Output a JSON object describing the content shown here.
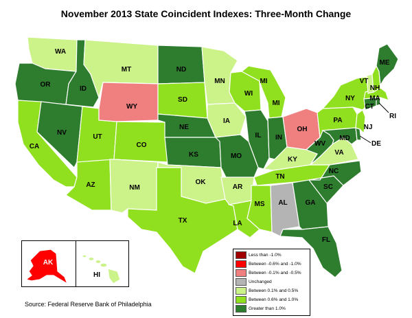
{
  "title": "November 2013 State Coincident Indexes: Three-Month Change",
  "source": "Source: Federal Reserve Bank of Philadelphia",
  "colors": {
    "lt_neg1": "#a00000",
    "neg06_neg1": "#ff0000",
    "neg01_neg05": "#f08080",
    "unchanged": "#b4b4b4",
    "pos01_05": "#ccf28a",
    "pos06_1": "#90e020",
    "gt_1": "#2e7d2e"
  },
  "legend": [
    {
      "key": "lt_neg1",
      "label": "Less than -1.0%"
    },
    {
      "key": "neg06_neg1",
      "label": "Between -0.6% and -1.0%"
    },
    {
      "key": "neg01_neg05",
      "label": "Between -0.1% and -0.5%"
    },
    {
      "key": "unchanged",
      "label": "Unchanged"
    },
    {
      "key": "pos01_05",
      "label": "Between 0.1% and 0.5%"
    },
    {
      "key": "pos06_1",
      "label": "Between 0.6% and 1.0%"
    },
    {
      "key": "gt_1",
      "label": "Greater than 1.0%"
    }
  ],
  "states": {
    "WA": {
      "label": "WA",
      "category": "pos01_05"
    },
    "OR": {
      "label": "OR",
      "category": "gt_1"
    },
    "CA": {
      "label": "CA",
      "category": "pos06_1"
    },
    "ID": {
      "label": "ID",
      "category": "gt_1"
    },
    "NV": {
      "label": "NV",
      "category": "gt_1"
    },
    "AZ": {
      "label": "AZ",
      "category": "pos06_1"
    },
    "UT": {
      "label": "UT",
      "category": "pos06_1"
    },
    "MT": {
      "label": "MT",
      "category": "pos01_05"
    },
    "WY": {
      "label": "WY",
      "category": "neg01_neg05"
    },
    "CO": {
      "label": "CO",
      "category": "pos06_1"
    },
    "NM": {
      "label": "NM",
      "category": "pos01_05"
    },
    "ND": {
      "label": "ND",
      "category": "gt_1"
    },
    "SD": {
      "label": "SD",
      "category": "pos06_1"
    },
    "NE": {
      "label": "NE",
      "category": "gt_1"
    },
    "KS": {
      "label": "KS",
      "category": "gt_1"
    },
    "OK": {
      "label": "OK",
      "category": "pos01_05"
    },
    "TX": {
      "label": "TX",
      "category": "pos06_1"
    },
    "MN": {
      "label": "MN",
      "category": "pos01_05"
    },
    "IA": {
      "label": "IA",
      "category": "pos01_05"
    },
    "MO": {
      "label": "MO",
      "category": "gt_1"
    },
    "AR": {
      "label": "AR",
      "category": "pos01_05"
    },
    "LA": {
      "label": "LA",
      "category": "pos06_1"
    },
    "WI": {
      "label": "WI",
      "category": "pos06_1"
    },
    "IL": {
      "label": "IL",
      "category": "gt_1"
    },
    "MI": {
      "label": "MI",
      "category": "pos06_1"
    },
    "IN": {
      "label": "IN",
      "category": "gt_1"
    },
    "OH": {
      "label": "OH",
      "category": "neg01_neg05"
    },
    "KY": {
      "label": "KY",
      "category": "pos01_05"
    },
    "TN": {
      "label": "TN",
      "category": "pos06_1"
    },
    "MS": {
      "label": "MS",
      "category": "pos06_1"
    },
    "AL": {
      "label": "AL",
      "category": "unchanged"
    },
    "GA": {
      "label": "GA",
      "category": "gt_1"
    },
    "FL": {
      "label": "FL",
      "category": "gt_1"
    },
    "SC": {
      "label": "SC",
      "category": "gt_1"
    },
    "NC": {
      "label": "NC",
      "category": "gt_1"
    },
    "VA": {
      "label": "VA",
      "category": "pos01_05"
    },
    "WV": {
      "label": "WV",
      "category": "gt_1"
    },
    "PA": {
      "label": "PA",
      "category": "pos06_1"
    },
    "NY": {
      "label": "NY",
      "category": "pos06_1"
    },
    "VT": {
      "label": "VT",
      "category": "pos01_05"
    },
    "NH": {
      "label": "NH",
      "category": "pos06_1"
    },
    "ME": {
      "label": "ME",
      "category": "gt_1"
    },
    "MA": {
      "label": "MA",
      "category": "pos06_1"
    },
    "RI": {
      "label": "RI",
      "category": "gt_1"
    },
    "CT": {
      "label": "CT",
      "category": "gt_1"
    },
    "NJ": {
      "label": "NJ",
      "category": "pos06_1"
    },
    "DE": {
      "label": "DE",
      "category": "gt_1"
    },
    "MD": {
      "label": "MD",
      "category": "gt_1"
    },
    "AK": {
      "label": "AK",
      "category": "neg06_neg1"
    },
    "HI": {
      "label": "HI",
      "category": "pos01_05"
    }
  }
}
